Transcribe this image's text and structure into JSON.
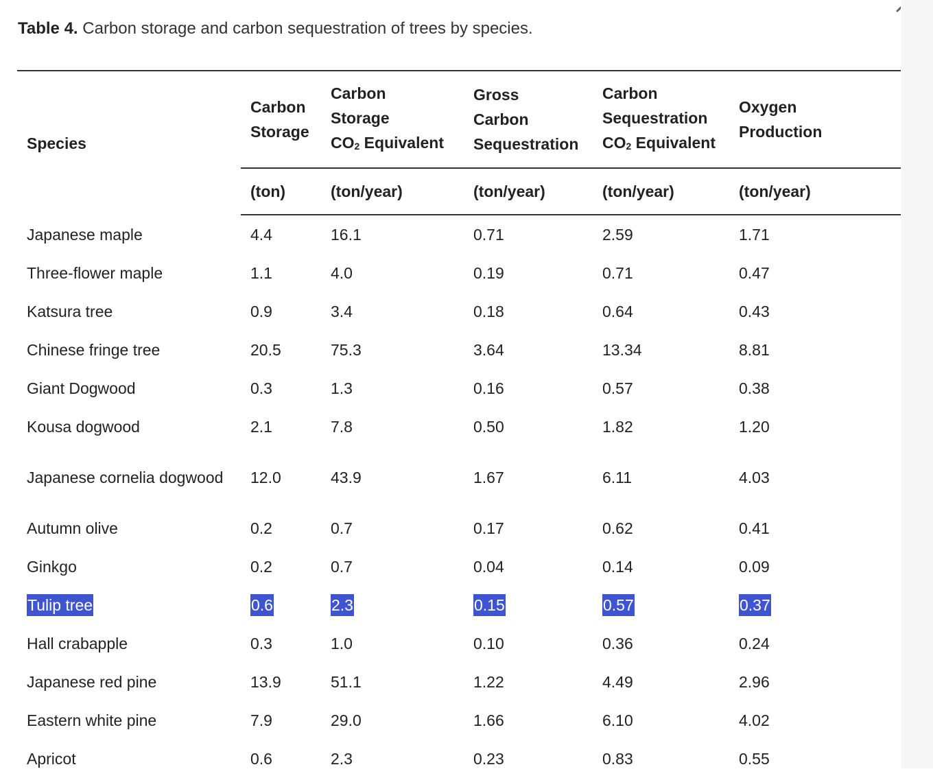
{
  "caption": {
    "label": "Table 4.",
    "text": " Carbon storage and carbon sequestration of trees by species."
  },
  "close_icon": "close-icon",
  "table": {
    "columns": [
      {
        "key": "species",
        "title": "Species",
        "unit": ""
      },
      {
        "key": "carbon_storage",
        "title": "Carbon Storage",
        "unit": "(ton)"
      },
      {
        "key": "carbon_storage_co2",
        "title": "Carbon Storage CO₂ Equivalent",
        "unit": "(ton/year)"
      },
      {
        "key": "gross_carbon_sequestration",
        "title": "Gross Carbon Sequestration",
        "unit": "(ton/year)"
      },
      {
        "key": "carbon_sequestration_co2",
        "title": "Carbon Sequestration CO₂ Equivalent",
        "unit": "(ton/year)"
      },
      {
        "key": "oxygen_production",
        "title": "Oxygen Production",
        "unit": "(ton/year)"
      }
    ],
    "header_lines": {
      "h1": [
        "Carbon",
        "Storage"
      ],
      "h2": [
        "Carbon",
        "Storage",
        "CO",
        " Equivalent"
      ],
      "h3": [
        "Gross",
        "Carbon",
        "Sequestration"
      ],
      "h4": [
        "Carbon",
        "Sequestration",
        "CO",
        " Equivalent"
      ],
      "h5": [
        "Oxygen",
        "Production"
      ],
      "sub": "2"
    },
    "rows": [
      [
        "Japanese maple",
        "4.4",
        "16.1",
        "0.71",
        "2.59",
        "1.71"
      ],
      [
        "Three-flower maple",
        "1.1",
        "4.0",
        "0.19",
        "0.71",
        "0.47"
      ],
      [
        "Katsura tree",
        "0.9",
        "3.4",
        "0.18",
        "0.64",
        "0.43"
      ],
      [
        "Chinese fringe tree",
        "20.5",
        "75.3",
        "3.64",
        "13.34",
        "8.81"
      ],
      [
        "Giant Dogwood",
        "0.3",
        "1.3",
        "0.16",
        "0.57",
        "0.38"
      ],
      [
        "Kousa dogwood",
        "2.1",
        "7.8",
        "0.50",
        "1.82",
        "1.20"
      ],
      [
        "Japanese cornelia dogwood",
        "12.0",
        "43.9",
        "1.67",
        "6.11",
        "4.03"
      ],
      [
        "Autumn olive",
        "0.2",
        "0.7",
        "0.17",
        "0.62",
        "0.41"
      ],
      [
        "Ginkgo",
        "0.2",
        "0.7",
        "0.04",
        "0.14",
        "0.09"
      ],
      [
        "Tulip tree",
        "0.6",
        "2.3",
        "0.15",
        "0.57",
        "0.37"
      ],
      [
        "Hall crabapple",
        "0.3",
        "1.0",
        "0.10",
        "0.36",
        "0.24"
      ],
      [
        "Japanese red pine",
        "13.9",
        "51.1",
        "1.22",
        "4.49",
        "2.96"
      ],
      [
        "Eastern white pine",
        "7.9",
        "29.0",
        "1.66",
        "6.10",
        "4.02"
      ],
      [
        "Apricot",
        "0.6",
        "2.3",
        "0.23",
        "0.83",
        "0.55"
      ]
    ],
    "selected_row": "Tulip tree",
    "selection_color": "#3f54d0"
  }
}
